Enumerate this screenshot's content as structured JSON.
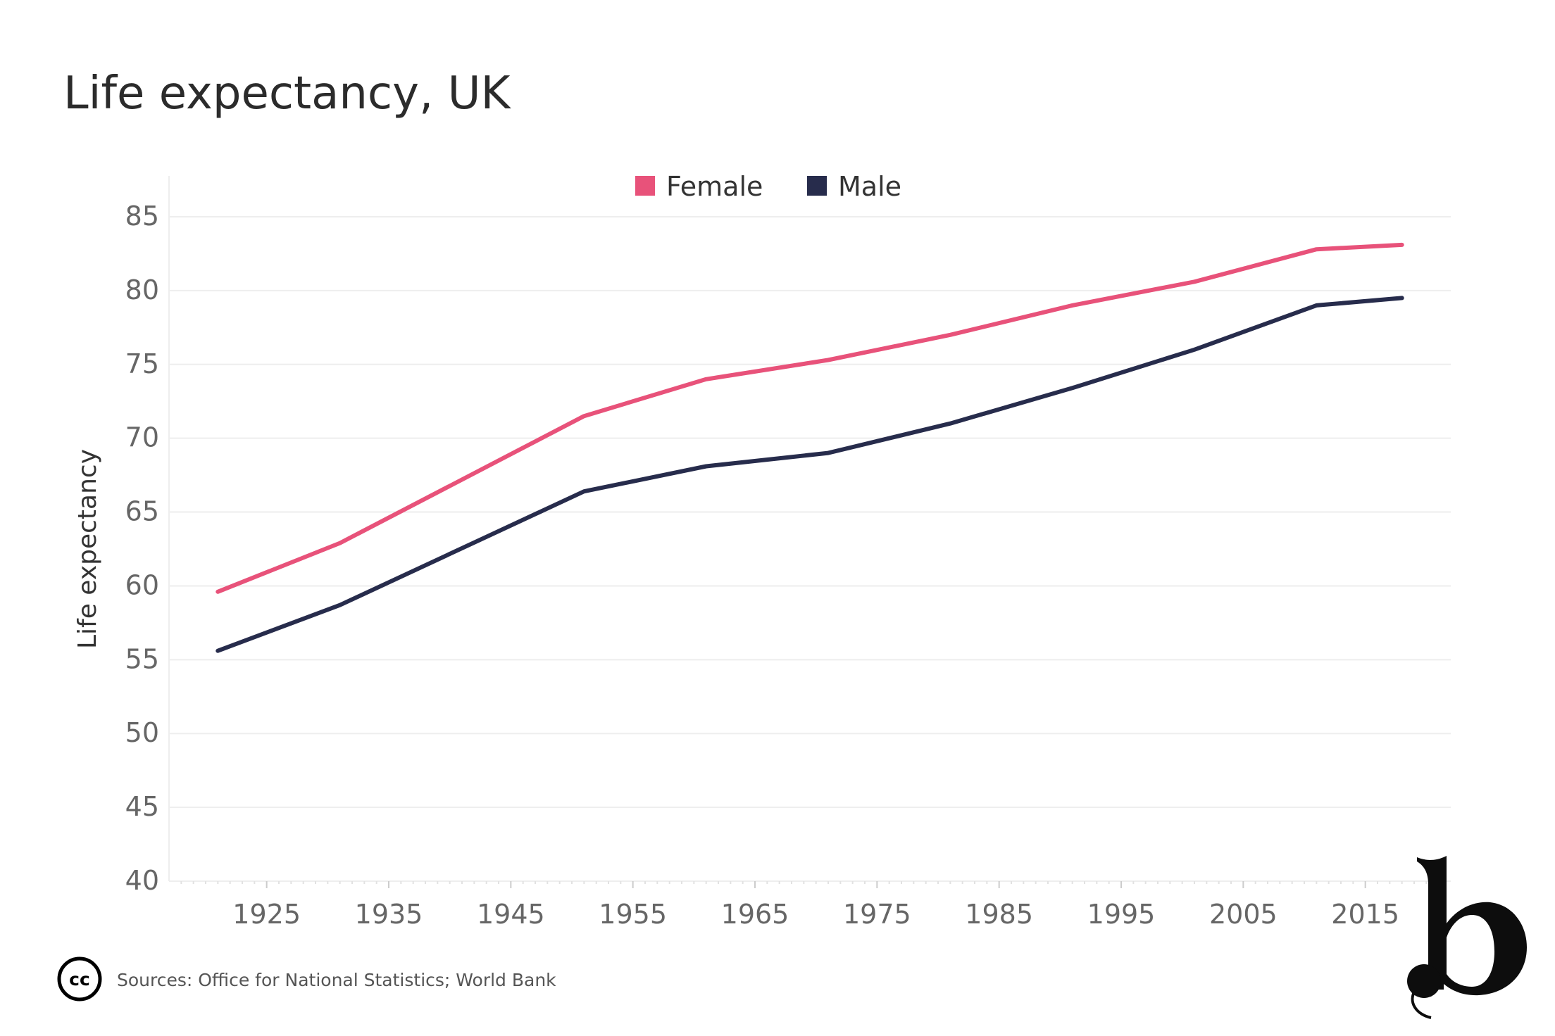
{
  "page": {
    "title": "Life expectancy, UK",
    "source": "Sources: Office for National Statistics;  World Bank"
  },
  "colors": {
    "female": "#e8527a",
    "male": "#272c4c",
    "grid": "#eeeeee",
    "tick_label": "#666666"
  },
  "icons": {
    "license": "creative-commons-icon",
    "brand": "b-logo-icon"
  },
  "chart_data": {
    "type": "line",
    "title": "Life expectancy, UK",
    "xlabel": "",
    "ylabel": "Life expectancy",
    "xlim": [
      1917,
      2022
    ],
    "ylim": [
      40,
      85
    ],
    "x_ticks": [
      1925,
      1935,
      1945,
      1955,
      1965,
      1975,
      1985,
      1995,
      2005,
      2015
    ],
    "y_ticks": [
      40,
      45,
      50,
      55,
      60,
      65,
      70,
      75,
      80,
      85
    ],
    "grid": true,
    "legend_position": "top-center",
    "x": [
      1921,
      1931,
      1951,
      1961,
      1971,
      1981,
      1991,
      2001,
      2011,
      2018
    ],
    "series": [
      {
        "name": "Female",
        "color": "#e8527a",
        "values": [
          59.6,
          62.9,
          71.5,
          74.0,
          75.3,
          77.0,
          79.0,
          80.6,
          82.8,
          83.1
        ]
      },
      {
        "name": "Male",
        "color": "#272c4c",
        "values": [
          55.6,
          58.7,
          66.4,
          68.1,
          69.0,
          71.0,
          73.4,
          76.0,
          79.0,
          79.5
        ]
      }
    ]
  }
}
